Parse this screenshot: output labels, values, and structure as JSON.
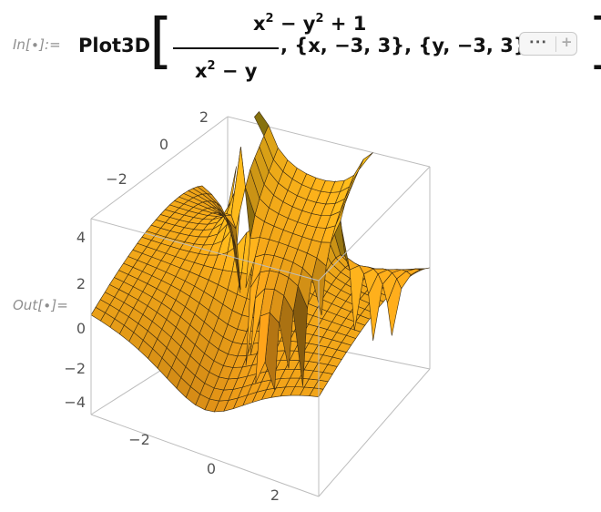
{
  "input": {
    "label": "In[∙]:=",
    "func": "Plot3D",
    "open_bracket": "[",
    "num_base_x": "x",
    "num_sup_x": "2",
    "num_mid": " − y",
    "num_sup_y": "2",
    "num_tail": " + 1",
    "den_base": "x",
    "den_sup": "2",
    "den_tail": " − y",
    "args": ", {x, −3, 3}, {y, −3, 3},",
    "ellipsis_label": "∙∙∙",
    "plus_label": "+",
    "close_bracket": "]"
  },
  "output": {
    "label": "Out[∙]=",
    "plot": {
      "x_range": [
        -3,
        3
      ],
      "y_range": [
        -3,
        3
      ],
      "surface_color": "#f3a21d",
      "x_ticks": [
        "−2",
        "0",
        "2"
      ],
      "y_ticks": [
        "−2",
        "0",
        "2"
      ],
      "z_ticks": [
        "4",
        "2",
        "0",
        "−2",
        "−4"
      ]
    }
  }
}
